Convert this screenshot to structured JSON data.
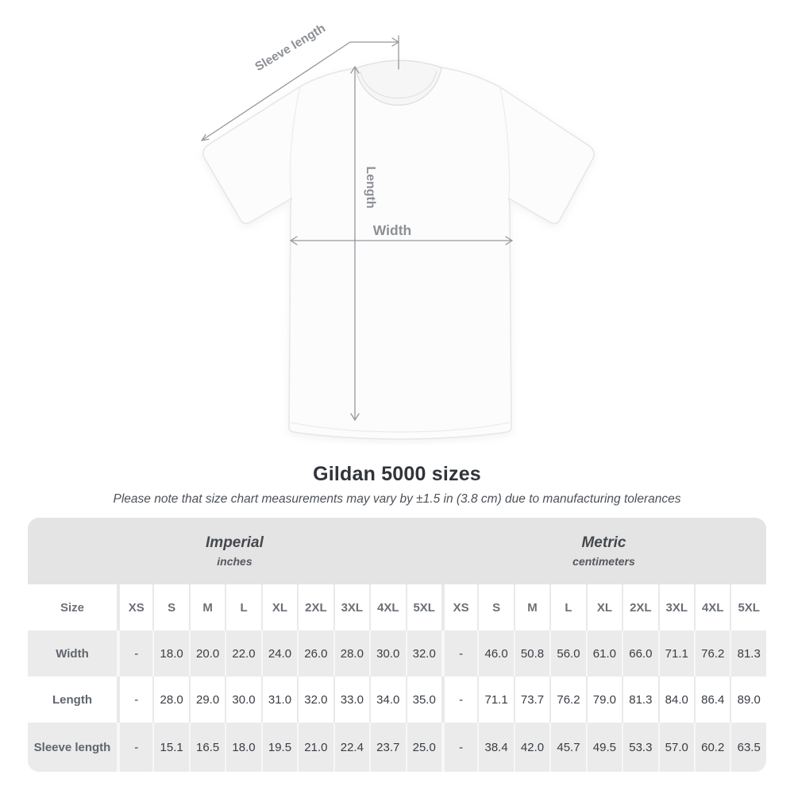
{
  "title": "Gildan 5000 sizes",
  "note": "Please note that size chart measurements may vary by ±1.5 in (3.8 cm) due to manufacturing tolerances",
  "diagram": {
    "sleeve_length_label": "Sleeve length",
    "length_label": "Length",
    "width_label": "Width"
  },
  "chart_data": {
    "type": "table",
    "title": "Gildan 5000 sizes",
    "size_header": "Size",
    "column_groups": [
      {
        "label": "Imperial",
        "unit": "inches"
      },
      {
        "label": "Metric",
        "unit": "centimeters"
      }
    ],
    "sizes": [
      "XS",
      "S",
      "M",
      "L",
      "XL",
      "2XL",
      "3XL",
      "4XL",
      "5XL"
    ],
    "rows": [
      {
        "label": "Width",
        "imperial": [
          "-",
          "18.0",
          "20.0",
          "22.0",
          "24.0",
          "26.0",
          "28.0",
          "30.0",
          "32.0"
        ],
        "metric": [
          "-",
          "46.0",
          "50.8",
          "56.0",
          "61.0",
          "66.0",
          "71.1",
          "76.2",
          "81.3"
        ]
      },
      {
        "label": "Length",
        "imperial": [
          "-",
          "28.0",
          "29.0",
          "30.0",
          "31.0",
          "32.0",
          "33.0",
          "34.0",
          "35.0"
        ],
        "metric": [
          "-",
          "71.1",
          "73.7",
          "76.2",
          "79.0",
          "81.3",
          "84.0",
          "86.4",
          "89.0"
        ]
      },
      {
        "label": "Sleeve length",
        "imperial": [
          "-",
          "15.1",
          "16.5",
          "18.0",
          "19.5",
          "21.0",
          "22.4",
          "23.7",
          "25.0"
        ],
        "metric": [
          "-",
          "38.4",
          "42.0",
          "45.7",
          "49.5",
          "53.3",
          "57.0",
          "60.2",
          "63.5"
        ]
      }
    ]
  },
  "colors": {
    "measure_line": "#94979b",
    "measure_text": "#8d9095",
    "header_band": "#e4e4e4",
    "row_stripe": "#ebebeb",
    "header_text": "#6b7076",
    "value_text": "#393d42",
    "title_text": "#313438",
    "note_text": "#4d5156"
  }
}
